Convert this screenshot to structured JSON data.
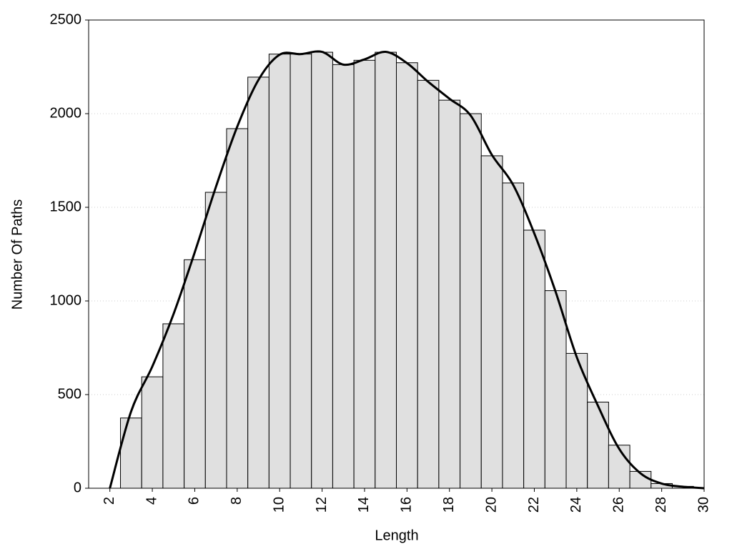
{
  "chart_data": {
    "type": "histogram",
    "xlabel": "Length",
    "ylabel": "Number Of Paths",
    "bins": [
      2.5,
      3.5,
      4.5,
      5.5,
      6.5,
      7.5,
      8.5,
      9.5,
      10.5,
      11.5,
      12.5,
      13.5,
      14.5,
      15.5,
      16.5,
      17.5,
      18.5,
      19.5,
      20.5,
      21.5,
      22.5,
      23.5,
      24.5,
      25.5,
      26.5,
      27.5,
      28.5,
      29.5
    ],
    "values": [
      375,
      595,
      878,
      1220,
      1580,
      1920,
      2195,
      2318,
      2318,
      2328,
      2262,
      2285,
      2328,
      2272,
      2178,
      2072,
      2000,
      1775,
      1630,
      1378,
      1055,
      720,
      460,
      230,
      90,
      25,
      10
    ],
    "color": "#e0e0e0",
    "curve": {
      "type": "line",
      "color": "#000000",
      "x": [
        2,
        3,
        4,
        5,
        6,
        7,
        8,
        9,
        10,
        11,
        12,
        13,
        14,
        15,
        16,
        17,
        18,
        19,
        20,
        21,
        22,
        23,
        24,
        25,
        26,
        27,
        28,
        29,
        30
      ],
      "values": [
        0,
        410,
        650,
        930,
        1260,
        1610,
        1930,
        2180,
        2315,
        2318,
        2330,
        2262,
        2290,
        2330,
        2270,
        2170,
        2080,
        1990,
        1780,
        1620,
        1360,
        1050,
        700,
        440,
        210,
        80,
        25,
        8,
        0
      ]
    },
    "xlim": [
      1,
      30
    ],
    "ylim": [
      0,
      2500
    ],
    "xticks": [
      2,
      4,
      6,
      8,
      10,
      12,
      14,
      16,
      18,
      20,
      22,
      24,
      26,
      28,
      30
    ],
    "yticks": [
      0,
      500,
      1000,
      1500,
      2000,
      2500
    ],
    "grid": true
  }
}
